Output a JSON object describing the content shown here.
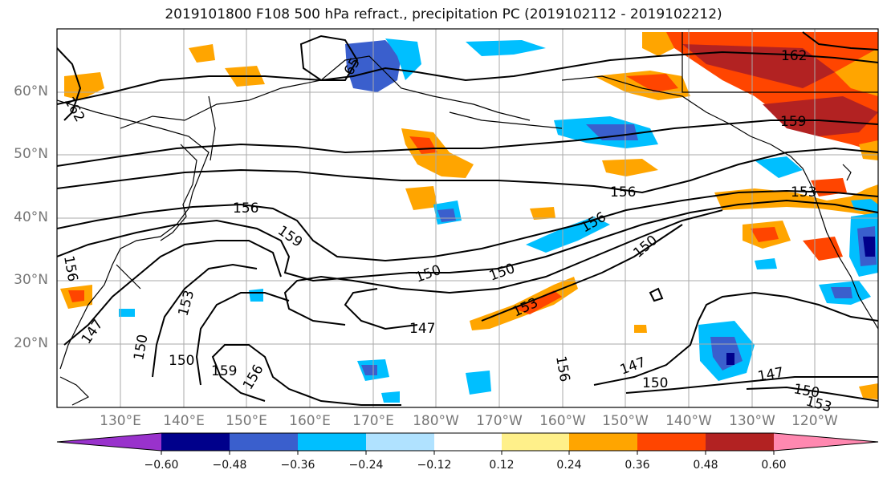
{
  "title": "2019101800 F108 500 hPa refract., precipitation PC (2019102112 - 2019102212)",
  "lat_labels": [
    "60°N",
    "50°N",
    "40°N",
    "30°N",
    "20°N"
  ],
  "lon_labels": [
    "130°E",
    "140°E",
    "150°E",
    "160°E",
    "170°E",
    "180°W",
    "170°W",
    "160°W",
    "150°W",
    "140°W",
    "130°W",
    "120°W"
  ],
  "colorbar": {
    "ticks": [
      "−0.60",
      "−0.48",
      "−0.36",
      "−0.24",
      "−0.12",
      "0.12",
      "0.24",
      "0.36",
      "0.48",
      "0.60"
    ],
    "colors": [
      "#9932cc",
      "#00008b",
      "#3a5fcd",
      "#00bfff",
      "#b0e2ff",
      "#ffffff",
      "#fff08a",
      "#ffa500",
      "#ff4500",
      "#b22222",
      "#ff88b0"
    ]
  },
  "contour_labels": [
    "156",
    "159",
    "150",
    "150",
    "147",
    "150",
    "156",
    "153",
    "156",
    "153",
    "159",
    "162",
    "162",
    "65",
    "156",
    "153",
    "147",
    "150",
    "150",
    "159",
    "156",
    "156",
    "147",
    "150",
    "147",
    "150",
    "153"
  ]
}
